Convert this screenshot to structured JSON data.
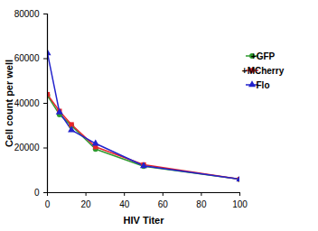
{
  "chart_data": {
    "type": "line",
    "x_label": "HIV Titer",
    "y_label": "Cell count per well",
    "x": [
      0,
      6.25,
      12.5,
      25,
      50,
      100
    ],
    "series": [
      {
        "name": "+GFP",
        "color": "#2e9a2e",
        "marker": "circle",
        "values": [
          43500,
          35000,
          30000,
          19500,
          11800,
          6000
        ]
      },
      {
        "name": "+MCherry",
        "color": "#e8242a",
        "marker": "square",
        "values": [
          44000,
          36500,
          30500,
          20500,
          12500,
          6000
        ]
      },
      {
        "name": "Flo",
        "color": "#2222cc",
        "marker": "triangle",
        "values": [
          62500,
          36000,
          28000,
          22000,
          12000,
          6000
        ]
      }
    ],
    "xlim": [
      0,
      100
    ],
    "xticks": [
      0,
      20,
      40,
      60,
      80,
      100
    ],
    "ylim": [
      0,
      80000
    ],
    "yticks": [
      0,
      20000,
      40000,
      60000,
      80000
    ],
    "legend": "right"
  }
}
